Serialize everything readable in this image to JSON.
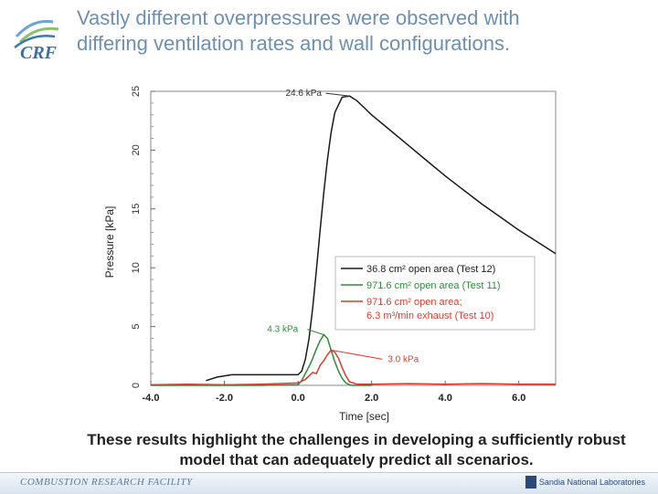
{
  "header": {
    "title_line1": "Vastly different overpressures were observed with",
    "title_line2": "differing ventilation rates and wall configurations.",
    "logo_text": "CRF"
  },
  "chart_data": {
    "type": "line",
    "xlabel": "Time [sec]",
    "ylabel": "Pressure [kPa]",
    "xlim": [
      -4.0,
      7.0
    ],
    "ylim": [
      0,
      25
    ],
    "xticks": [
      "-4.0",
      "-2.0",
      "0.0",
      "2.0",
      "4.0",
      "6.0"
    ],
    "xtick_values": [
      -4,
      -2,
      0,
      2,
      4,
      6
    ],
    "yticks": [
      "0",
      "5",
      "10",
      "15",
      "20",
      "25"
    ],
    "ytick_values": [
      0,
      5,
      10,
      15,
      20,
      25
    ],
    "grid": false,
    "legend_position": "bottom-right",
    "series": [
      {
        "name": "36.8 cm² open area (Test 12)",
        "legend_lines": [
          "36.8 cm² open area (Test 12)"
        ],
        "color": "#1a1a1a",
        "x": [
          -2.5,
          -2.2,
          -1.8,
          -1.0,
          -0.5,
          0.0,
          0.1,
          0.2,
          0.3,
          0.4,
          0.5,
          0.6,
          0.7,
          0.8,
          0.9,
          1.0,
          1.2,
          1.4,
          1.6,
          1.8,
          2.0,
          2.5,
          3.0,
          3.5,
          4.0,
          4.5,
          5.0,
          5.5,
          6.0,
          6.5,
          7.0
        ],
        "y": [
          0.4,
          0.7,
          0.9,
          0.9,
          0.9,
          0.9,
          1.2,
          2.2,
          4.0,
          6.6,
          9.8,
          13.2,
          16.4,
          19.2,
          21.5,
          23.2,
          24.5,
          24.6,
          24.2,
          23.6,
          23.0,
          21.7,
          20.4,
          19.1,
          17.8,
          16.6,
          15.4,
          14.3,
          13.2,
          12.2,
          11.2
        ]
      },
      {
        "name": "971.6 cm² open area (Test 11)",
        "legend_lines": [
          "971.6 cm² open area (Test 11)"
        ],
        "color": "#2e8b3a",
        "x": [
          -4.0,
          -2.0,
          -1.0,
          0.0,
          0.1,
          0.2,
          0.3,
          0.4,
          0.5,
          0.6,
          0.7,
          0.8,
          0.9,
          1.0,
          1.1,
          1.2,
          1.3,
          1.4,
          1.5,
          1.6,
          2.0
        ],
        "y": [
          0.0,
          0.0,
          0.0,
          0.05,
          0.4,
          1.0,
          1.6,
          2.3,
          3.1,
          3.8,
          4.3,
          4.0,
          3.0,
          2.0,
          1.2,
          0.6,
          0.2,
          0.05,
          0.0,
          0.0,
          0.0
        ]
      },
      {
        "name": "971.6 cm² open area; 6.3 m³/min exhaust (Test 10)",
        "legend_lines": [
          "971.6 cm² open area;",
          "6.3 m³/min exhaust (Test 10)"
        ],
        "color": "#e03a2c",
        "x": [
          -4.0,
          -3.0,
          -2.0,
          -1.0,
          0.0,
          0.2,
          0.4,
          0.5,
          0.6,
          0.7,
          0.8,
          0.9,
          1.0,
          1.1,
          1.2,
          1.3,
          1.4,
          1.6,
          2.0,
          3.0,
          4.0,
          5.0,
          6.0,
          7.0
        ],
        "y": [
          0.05,
          0.1,
          0.05,
          0.1,
          0.2,
          0.5,
          1.1,
          1.0,
          1.7,
          2.1,
          2.6,
          3.0,
          2.8,
          2.3,
          1.5,
          0.8,
          0.3,
          0.1,
          0.1,
          0.15,
          0.1,
          0.15,
          0.1,
          0.1
        ]
      }
    ],
    "annotations": [
      {
        "text": "24.6 kPa",
        "x": 1.4,
        "y": 24.6,
        "color": "#333333"
      },
      {
        "text": "4.3 kPa",
        "x": 0.7,
        "y": 4.3,
        "color": "#2e8b3a"
      },
      {
        "text": "3.0 kPa",
        "x": 0.9,
        "y": 3.0,
        "color": "#e03a2c"
      }
    ]
  },
  "caption": "These results highlight the challenges in developing a sufficiently robust model that can adequately predict all scenarios.",
  "footer": {
    "left_text": "COMBUSTION RESEARCH FACILITY",
    "right_text": "Sandia National Laboratories"
  }
}
